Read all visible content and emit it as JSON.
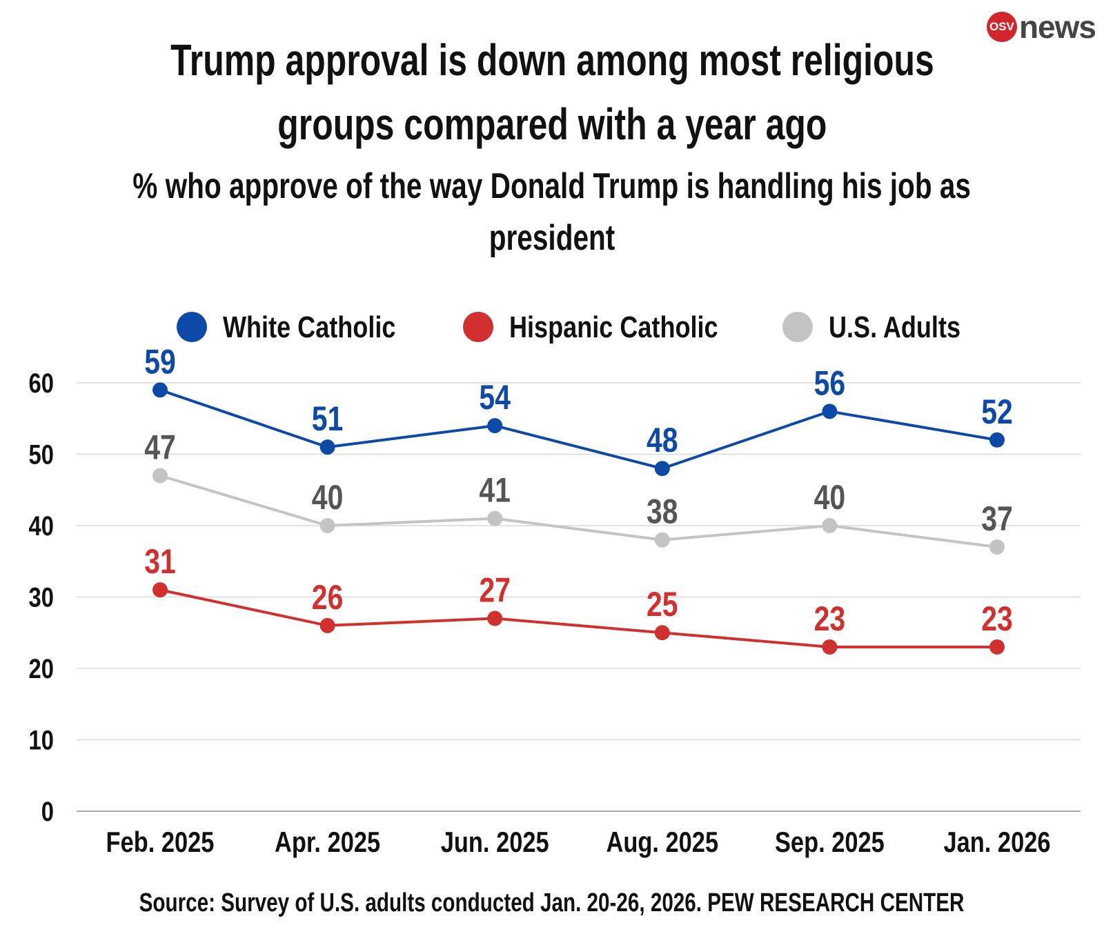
{
  "logo": {
    "badge": "OSV",
    "word": "news"
  },
  "chart_data": {
    "type": "line",
    "title": "Trump approval is down among most religious groups compared with a year ago",
    "title_lines": [
      "Trump approval is down among most religious",
      "groups compared with a year ago"
    ],
    "subtitle": "% who approve of the way Donald Trump is handling his job as president",
    "subtitle_lines": [
      "% who approve of the way Donald Trump is handling his job as",
      "president"
    ],
    "categories": [
      "Feb. 2025",
      "Apr. 2025",
      "Jun. 2025",
      "Aug. 2025",
      "Sep. 2025",
      "Jan. 2026"
    ],
    "series": [
      {
        "name": "White Catholic",
        "color": "#0d4aa8",
        "label_color": "#0d4aa8",
        "values": [
          59,
          51,
          54,
          48,
          56,
          52
        ]
      },
      {
        "name": "Hispanic Catholic",
        "color": "#d22f2f",
        "label_color": "#d22f2f",
        "values": [
          31,
          26,
          27,
          25,
          23,
          23
        ]
      },
      {
        "name": "U.S. Adults",
        "color": "#c4c4c4",
        "label_color": "#555555",
        "values": [
          47,
          40,
          41,
          38,
          40,
          37
        ]
      }
    ],
    "yticks": [
      0,
      10,
      20,
      30,
      40,
      50,
      60
    ],
    "ylim": [
      0,
      60
    ],
    "grid": true,
    "legend": "top",
    "source": "Source: Survey of U.S. adults conducted Jan. 20-26, 2026. PEW RESEARCH CENTER"
  }
}
